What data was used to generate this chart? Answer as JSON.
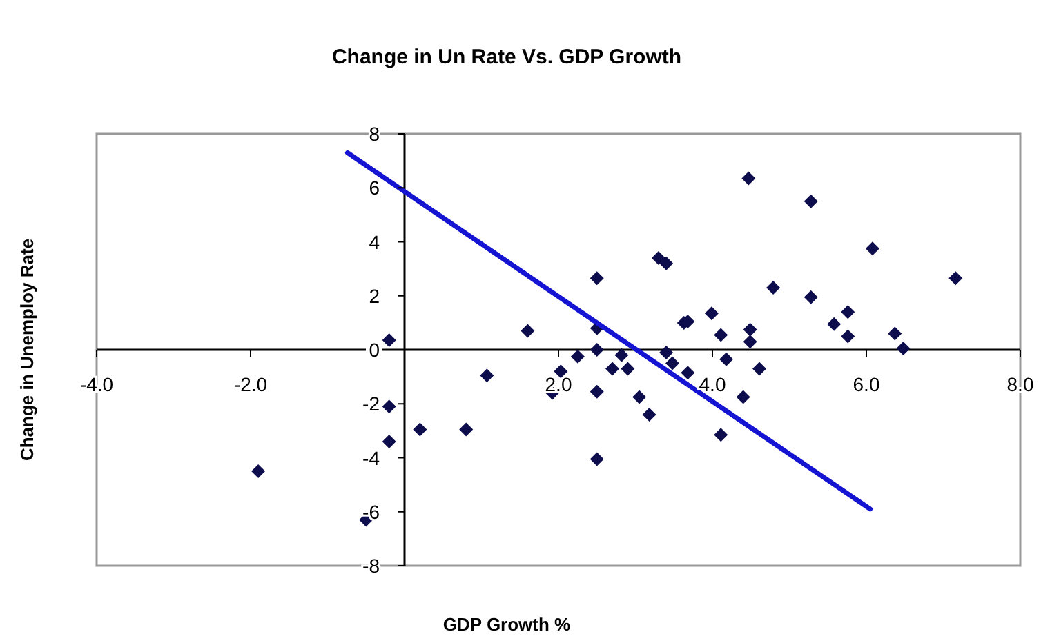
{
  "chart_data": {
    "type": "scatter",
    "title": "Change in Un Rate Vs. GDP Growth",
    "xlabel": "GDP Growth %",
    "ylabel": "Change in Unemploy Rate",
    "xlim": [
      -4,
      8
    ],
    "ylim": [
      -8,
      8
    ],
    "xticks": [
      {
        "value": -4,
        "label": "-4.0"
      },
      {
        "value": -2,
        "label": "-2.0"
      },
      {
        "value": 0,
        "label": null
      },
      {
        "value": 2,
        "label": "2.0"
      },
      {
        "value": 4,
        "label": "4.0"
      },
      {
        "value": 6,
        "label": "6.0"
      },
      {
        "value": 8,
        "label": "8.0"
      }
    ],
    "yticks": [
      -8,
      -6,
      -4,
      -2,
      0,
      2,
      4,
      6,
      8
    ],
    "grid": false,
    "marker": "diamond",
    "series": [
      {
        "color": "#0d0d4d",
        "x": [
          -0.2,
          -0.2,
          -0.2,
          0.2,
          0.8,
          1.07,
          1.6,
          2.03,
          1.92,
          -1.9,
          -0.5,
          2.25,
          2.5,
          2.5,
          2.5,
          2.5,
          2.5,
          2.7,
          2.82,
          2.9,
          3.05,
          3.18,
          3.3,
          3.4,
          3.4,
          3.48,
          3.63,
          3.68,
          3.68,
          3.99,
          4.11,
          4.18,
          4.11,
          4.4,
          4.47,
          4.49,
          4.49,
          4.61,
          4.79,
          5.28,
          5.28,
          5.58,
          5.76,
          5.76,
          6.08,
          6.37,
          6.48,
          7.16
        ],
        "values": [
          0.36,
          -2.1,
          -3.4,
          -2.95,
          -2.95,
          -0.95,
          0.7,
          -0.8,
          -1.6,
          -4.5,
          -6.3,
          -0.25,
          2.65,
          0.8,
          0,
          -1.55,
          -4.05,
          -0.7,
          -0.2,
          -0.7,
          -1.75,
          -2.4,
          3.4,
          3.2,
          -0.1,
          -0.5,
          1.0,
          1.05,
          -0.85,
          1.35,
          0.55,
          -0.35,
          -3.15,
          -1.75,
          6.35,
          0.75,
          0.3,
          -0.7,
          2.3,
          5.5,
          1.95,
          0.95,
          1.4,
          0.5,
          3.75,
          0.6,
          0.05,
          2.65
        ]
      },
      {
        "type": "line",
        "color": "#1414d2",
        "marker": "none",
        "x": [
          -0.74,
          6.05
        ],
        "values": [
          7.3,
          -5.9
        ]
      }
    ]
  }
}
